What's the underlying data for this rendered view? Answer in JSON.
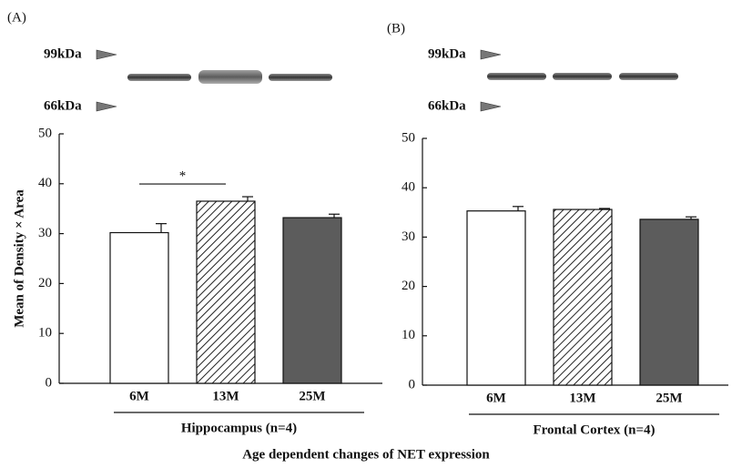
{
  "title": "Age dependent changes of NET expression",
  "chart_data": [
    {
      "type": "bar",
      "panel": "(A)",
      "markers": [
        "99kDa",
        "66kDa"
      ],
      "y_label": "Mean of Density × Area",
      "x_label": "Hippocampus (n=4)",
      "categories": [
        "6M",
        "13M",
        "25M"
      ],
      "values": [
        30.2,
        36.5,
        33.2
      ],
      "errors": [
        1.8,
        0.9,
        0.7
      ],
      "colors": [
        "#ffffff",
        "#ffffff",
        "#5c5c5c"
      ],
      "hatch": [
        false,
        true,
        false
      ],
      "annotations": [
        "*"
      ],
      "ylim": [
        0,
        50
      ],
      "yticks": [
        0,
        10,
        20,
        30,
        40,
        50
      ]
    },
    {
      "type": "bar",
      "panel": "(B)",
      "markers": [
        "99kDa",
        "66kDa"
      ],
      "x_label": "Frontal Cortex (n=4)",
      "categories": [
        "6M",
        "13M",
        "25M"
      ],
      "values": [
        35.3,
        35.6,
        33.6
      ],
      "errors": [
        0.9,
        0.2,
        0.5
      ],
      "colors": [
        "#ffffff",
        "#ffffff",
        "#5c5c5c"
      ],
      "hatch": [
        false,
        true,
        false
      ],
      "ylim": [
        0,
        50
      ],
      "yticks": [
        0,
        10,
        20,
        30,
        40,
        50
      ]
    }
  ]
}
